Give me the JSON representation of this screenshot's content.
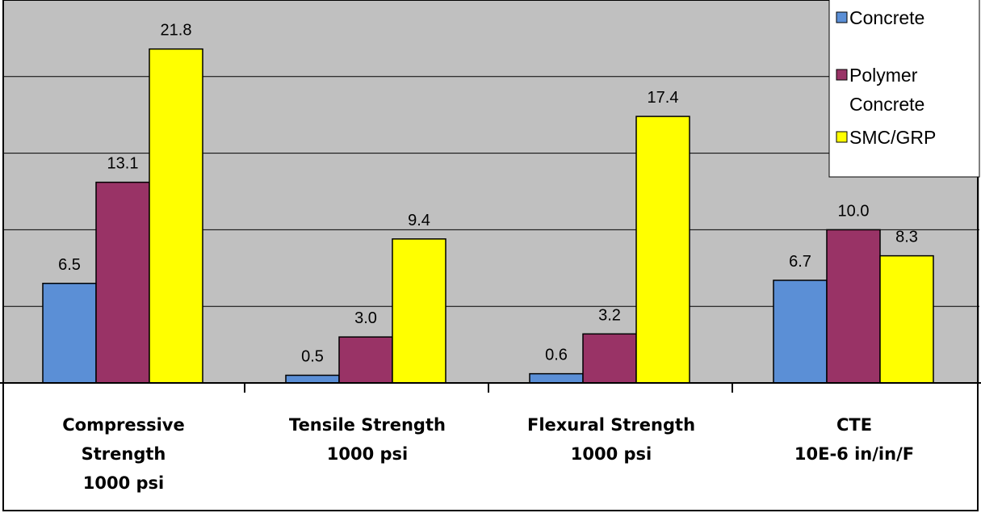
{
  "chart_data": {
    "type": "bar",
    "categories": [
      [
        "Compressive",
        "Strength",
        "1000 psi"
      ],
      [
        "Tensile Strength",
        "1000 psi"
      ],
      [
        "Flexural Strength",
        "1000 psi"
      ],
      [
        "CTE",
        "10E-6 in/in/F"
      ]
    ],
    "series": [
      {
        "name": "Concrete",
        "legend_lines": [
          "Concrete"
        ],
        "color": "#5b8fd6",
        "values": [
          6.5,
          0.5,
          0.6,
          6.7
        ],
        "labels": [
          "6.5",
          "0.5",
          "0.6",
          "6.7"
        ]
      },
      {
        "name": "Polymer Concrete",
        "legend_lines": [
          "Polymer",
          "Concrete"
        ],
        "color": "#993366",
        "values": [
          13.1,
          3.0,
          3.2,
          10.0
        ],
        "labels": [
          "13.1",
          "3.0",
          "3.2",
          "10.0"
        ]
      },
      {
        "name": "SMC/GRP",
        "legend_lines": [
          "SMC/GRP"
        ],
        "color": "#ffff00",
        "values": [
          21.8,
          9.4,
          17.4,
          8.3
        ],
        "labels": [
          "21.8",
          "9.4",
          "17.4",
          "8.3"
        ]
      }
    ],
    "ylim": [
      0,
      25
    ],
    "gridlines": [
      5,
      10,
      15,
      20,
      25
    ],
    "grid": true,
    "plot_background": "#c0c0c0",
    "legend_position": "top-right",
    "title": "",
    "xlabel": "",
    "ylabel": ""
  }
}
